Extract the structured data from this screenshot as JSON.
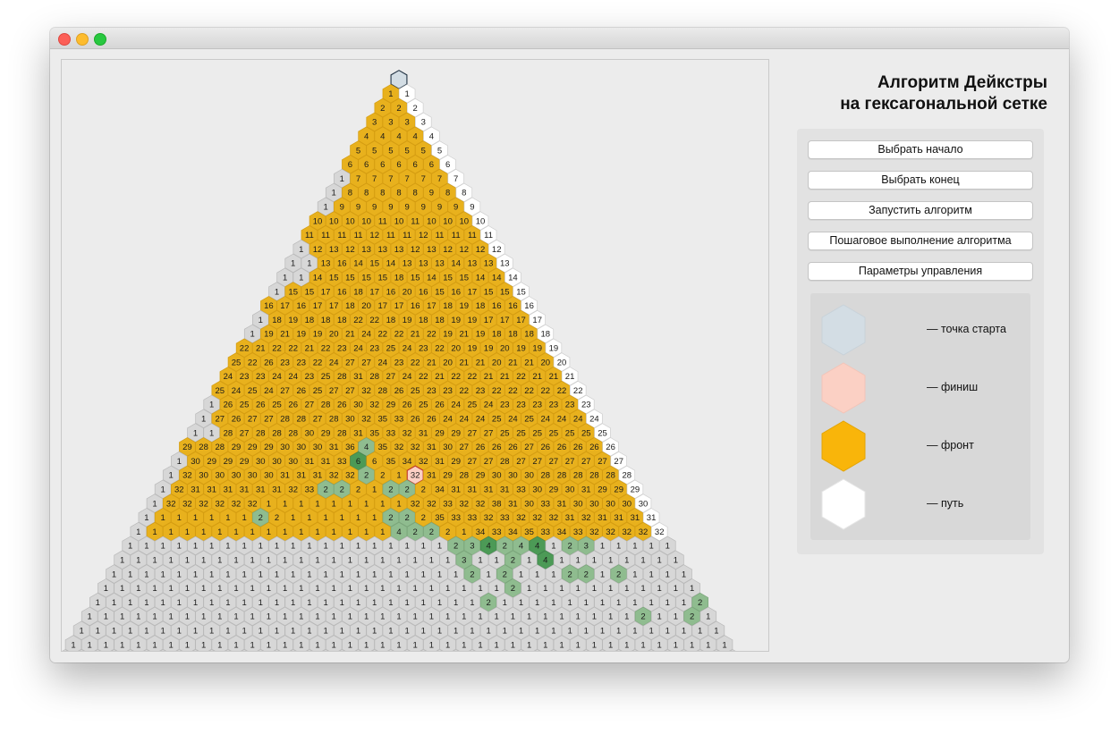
{
  "window": {
    "buttons": [
      "close",
      "minimize",
      "zoom"
    ]
  },
  "title": {
    "line1": "Алгоритм Дейкстры",
    "line2": "на гексагональной сетке"
  },
  "buttons": [
    {
      "label": "Выбрать начало"
    },
    {
      "label": "Выбрать конец"
    },
    {
      "label": "Запустить алгоритм"
    },
    {
      "label": "Пошаговое выполнение алгоритма"
    },
    {
      "label": "Параметры управления"
    }
  ],
  "legend": [
    {
      "label": "— точка старта",
      "color": "#d3dde4"
    },
    {
      "label": "— финиш",
      "color": "#fbd0c4"
    },
    {
      "label": "— фронт",
      "color": "#f9b50a"
    },
    {
      "label": "— путь",
      "color": "#ffffff"
    }
  ],
  "grid": {
    "colors": {
      "start": "#d3dde4",
      "finish": "#fbd0c4",
      "front": "#e8b11d",
      "path": "#ffffff",
      "empty": "#d7d7d7",
      "green_light": "#8fbc8f",
      "green_dark": "#4c9a56"
    },
    "rows": [
      {
        "front": [],
        "path": []
      },
      {
        "front": [
          "1"
        ],
        "path": [
          "1"
        ]
      },
      {
        "front": [
          "2",
          "2"
        ],
        "path": [
          "2"
        ]
      },
      {
        "front": [
          "3",
          "3",
          "3"
        ],
        "path": [
          "3"
        ]
      },
      {
        "front": [
          "4",
          "4",
          "4",
          "4"
        ],
        "path": [
          "4"
        ]
      },
      {
        "front": [
          "5",
          "5",
          "5",
          "5",
          "5"
        ],
        "path": [
          "5"
        ]
      },
      {
        "front": [
          "6",
          "6",
          "6",
          "6",
          "6",
          "6"
        ],
        "path": [
          "6"
        ]
      },
      {
        "front": [
          "7",
          "7",
          "7",
          "7",
          "7",
          "7"
        ],
        "path": [
          "7"
        ]
      },
      {
        "front": [
          "8",
          "8",
          "8",
          "8",
          "8",
          "9",
          "8"
        ],
        "path": [
          "8"
        ]
      },
      {
        "front": [
          "9",
          "9",
          "9",
          "9",
          "9",
          "9",
          "9",
          "9"
        ],
        "path": [
          "9"
        ]
      },
      {
        "front": [
          "10",
          "10",
          "10",
          "10",
          "11",
          "10",
          "11",
          "10",
          "10",
          "10"
        ],
        "path": [
          "10"
        ]
      },
      {
        "front": [
          "11",
          "11",
          "11",
          "11",
          "12",
          "11",
          "11",
          "12",
          "11",
          "11",
          "11"
        ],
        "path": [
          "11"
        ]
      },
      {
        "front": [
          "12",
          "13",
          "12",
          "13",
          "13",
          "13",
          "12",
          "13",
          "12",
          "12",
          "12"
        ],
        "path": [
          "12"
        ]
      },
      {
        "front": [
          "13",
          "16",
          "14",
          "15",
          "14",
          "13",
          "13",
          "13",
          "14",
          "13",
          "13"
        ],
        "path": [
          "13"
        ]
      },
      {
        "front": [
          "14",
          "15",
          "15",
          "15",
          "15",
          "18",
          "15",
          "14",
          "15",
          "15",
          "14",
          "14"
        ],
        "path": [
          "14"
        ]
      },
      {
        "front": [
          "15",
          "15",
          "17",
          "16",
          "18",
          "17",
          "16",
          "20",
          "16",
          "15",
          "16",
          "17",
          "15",
          "15"
        ],
        "path": [
          "15"
        ]
      },
      {
        "front": [
          "16",
          "17",
          "16",
          "17",
          "17",
          "18",
          "20",
          "17",
          "17",
          "16",
          "17",
          "18",
          "19",
          "18",
          "16",
          "16"
        ],
        "path": [
          "16"
        ]
      },
      {
        "front": [
          "18",
          "19",
          "18",
          "18",
          "18",
          "22",
          "22",
          "18",
          "19",
          "18",
          "18",
          "19",
          "19",
          "17",
          "17",
          "17"
        ],
        "path": [
          "17"
        ]
      },
      {
        "front": [
          "19",
          "21",
          "19",
          "19",
          "20",
          "21",
          "24",
          "22",
          "22",
          "21",
          "22",
          "19",
          "21",
          "19",
          "18",
          "18",
          "18"
        ],
        "path": [
          "18"
        ]
      },
      {
        "front": [
          "22",
          "21",
          "22",
          "22",
          "21",
          "22",
          "23",
          "24",
          "23",
          "25",
          "24",
          "23",
          "22",
          "20",
          "19",
          "19",
          "20",
          "19",
          "19"
        ],
        "path": [
          "19"
        ]
      },
      {
        "front": [
          "25",
          "22",
          "26",
          "23",
          "23",
          "22",
          "24",
          "27",
          "27",
          "24",
          "23",
          "22",
          "21",
          "20",
          "21",
          "21",
          "20",
          "21",
          "21",
          "20"
        ],
        "path": [
          "20"
        ]
      },
      {
        "front": [
          "24",
          "23",
          "23",
          "24",
          "24",
          "23",
          "25",
          "28",
          "31",
          "28",
          "27",
          "24",
          "22",
          "21",
          "22",
          "22",
          "21",
          "21",
          "22",
          "21",
          "21"
        ],
        "path": [
          "21"
        ]
      },
      {
        "front": [
          "25",
          "24",
          "25",
          "24",
          "27",
          "26",
          "25",
          "27",
          "27",
          "32",
          "28",
          "26",
          "25",
          "23",
          "23",
          "22",
          "23",
          "22",
          "22",
          "22",
          "22",
          "22"
        ],
        "path": [
          "22"
        ]
      },
      {
        "front": [
          "26",
          "25",
          "26",
          "25",
          "26",
          "27",
          "28",
          "26",
          "30",
          "32",
          "29",
          "26",
          "25",
          "26",
          "24",
          "25",
          "24",
          "23",
          "23",
          "23",
          "23",
          "23"
        ],
        "path": [
          "23"
        ]
      },
      {
        "front": [
          "27",
          "26",
          "27",
          "27",
          "28",
          "28",
          "27",
          "28",
          "30",
          "32",
          "35",
          "33",
          "26",
          "26",
          "24",
          "24",
          "24",
          "25",
          "24",
          "25",
          "24",
          "24",
          "24"
        ],
        "path": [
          "24"
        ]
      },
      {
        "front": [
          "28",
          "27",
          "28",
          "28",
          "28",
          "30",
          "29",
          "28",
          "31",
          "35",
          "33",
          "32",
          "31",
          "29",
          "29",
          "27",
          "27",
          "25",
          "25",
          "25",
          "25",
          "25",
          "25"
        ],
        "path": [
          "25"
        ]
      },
      {
        "front": [
          "29",
          "28",
          "28",
          "29",
          "29",
          "29",
          "30",
          "30",
          "30",
          "31",
          "36",
          "4",
          "35",
          "32",
          "32",
          "31",
          "30",
          "27",
          "26",
          "26",
          "26",
          "27",
          "26",
          "26",
          "26",
          "26"
        ],
        "path": [
          "26"
        ]
      },
      {
        "front": [
          "30",
          "29",
          "29",
          "29",
          "30",
          "30",
          "30",
          "31",
          "31",
          "33",
          "1",
          "6",
          "35",
          "34",
          "32",
          "31",
          "29",
          "27",
          "27",
          "28",
          "27",
          "27",
          "27",
          "27",
          "27",
          "27"
        ],
        "path": [
          "27"
        ]
      },
      {
        "front": [
          "32",
          "30",
          "30",
          "30",
          "30",
          "30",
          "31",
          "31",
          "31",
          "32",
          "32",
          "1",
          "2",
          "1",
          "32",
          "31",
          "29",
          "28",
          "29",
          "30",
          "30",
          "30",
          "28",
          "28",
          "28",
          "28",
          "28"
        ],
        "path": [
          "28"
        ]
      },
      {
        "front": [
          "32",
          "31",
          "31",
          "31",
          "31",
          "31",
          "31",
          "32",
          "33",
          "32",
          "2",
          "2",
          "1",
          "1",
          "2",
          "2",
          "34",
          "31",
          "31",
          "31",
          "31",
          "33",
          "30",
          "29",
          "30",
          "31",
          "29",
          "29"
        ],
        "path": [
          "29"
        ]
      },
      {
        "front": [
          "32",
          "32",
          "32",
          "32",
          "32",
          "32",
          "1",
          "1",
          "1",
          "1",
          "1",
          "1",
          "1",
          "1",
          "1",
          "32",
          "32",
          "33",
          "32",
          "32",
          "38",
          "31",
          "30",
          "33",
          "31",
          "30",
          "30",
          "30",
          "30"
        ],
        "path": [
          "30"
        ]
      },
      {
        "front": [
          "1",
          "1",
          "1",
          "1",
          "1",
          "1",
          "1",
          "2",
          "1",
          "1",
          "1",
          "1",
          "1",
          "1",
          "1",
          "2",
          "2",
          "35",
          "33",
          "33",
          "32",
          "33",
          "32",
          "32",
          "32",
          "31",
          "32",
          "31",
          "31",
          "31"
        ],
        "path": [
          "31"
        ]
      },
      {
        "front": [
          "1",
          "1",
          "1",
          "1",
          "1",
          "1",
          "1",
          "1",
          "1",
          "1",
          "1",
          "1",
          "1",
          "1",
          "1",
          "1",
          "4",
          "2",
          "2",
          "1",
          "34",
          "33",
          "34",
          "35",
          "33",
          "34",
          "33",
          "32",
          "32",
          "32",
          "32"
        ],
        "path": [
          "32"
        ]
      }
    ],
    "full_rows_count": 9,
    "full_row_value": "1",
    "marked_cells": [
      {
        "row": 26,
        "col": 11,
        "value": "4",
        "kind": "green_light"
      },
      {
        "row": 27,
        "col": 11,
        "value": "6",
        "kind": "green_dark"
      },
      {
        "row": 28,
        "col": 12,
        "value": "2",
        "kind": "green_light"
      },
      {
        "row": 28,
        "col": 15,
        "value": "32",
        "kind": "finish"
      },
      {
        "row": 29,
        "col": 10,
        "value": "2",
        "kind": "green_light"
      },
      {
        "row": 29,
        "col": 11,
        "value": "2",
        "kind": "green_light"
      },
      {
        "row": 29,
        "col": 14,
        "value": "2",
        "kind": "green_light"
      },
      {
        "row": 29,
        "col": 15,
        "value": "2",
        "kind": "green_light"
      },
      {
        "row": 31,
        "col": 7,
        "value": "2",
        "kind": "green_light"
      },
      {
        "row": 31,
        "col": 15,
        "value": "2",
        "kind": "green_light"
      },
      {
        "row": 31,
        "col": 16,
        "value": "2",
        "kind": "green_light"
      },
      {
        "row": 32,
        "col": 16,
        "value": "4",
        "kind": "green_light"
      },
      {
        "row": 32,
        "col": 17,
        "value": "2",
        "kind": "green_light"
      },
      {
        "row": 32,
        "col": 18,
        "value": "2",
        "kind": "green_light"
      },
      {
        "row": 33,
        "col": 20,
        "value": "2",
        "kind": "green_light"
      },
      {
        "row": 33,
        "col": 21,
        "value": "3",
        "kind": "green_light"
      },
      {
        "row": 33,
        "col": 22,
        "value": "4",
        "kind": "green_dark"
      },
      {
        "row": 33,
        "col": 23,
        "value": "2",
        "kind": "green_light"
      },
      {
        "row": 33,
        "col": 24,
        "value": "4",
        "kind": "green_light"
      },
      {
        "row": 33,
        "col": 25,
        "value": "4",
        "kind": "green_dark"
      },
      {
        "row": 33,
        "col": 27,
        "value": "2",
        "kind": "green_light"
      },
      {
        "row": 33,
        "col": 28,
        "value": "3",
        "kind": "green_light"
      },
      {
        "row": 34,
        "col": 21,
        "value": "3",
        "kind": "green_light"
      },
      {
        "row": 34,
        "col": 24,
        "value": "2",
        "kind": "green_light"
      },
      {
        "row": 34,
        "col": 26,
        "value": "4",
        "kind": "green_dark"
      },
      {
        "row": 35,
        "col": 22,
        "value": "2",
        "kind": "green_light"
      },
      {
        "row": 35,
        "col": 24,
        "value": "2",
        "kind": "green_light"
      },
      {
        "row": 35,
        "col": 28,
        "value": "2",
        "kind": "green_light"
      },
      {
        "row": 35,
        "col": 29,
        "value": "2",
        "kind": "green_light"
      },
      {
        "row": 35,
        "col": 31,
        "value": "2",
        "kind": "green_light"
      },
      {
        "row": 36,
        "col": 25,
        "value": "2",
        "kind": "green_light"
      },
      {
        "row": 37,
        "col": 24,
        "value": "2",
        "kind": "green_light"
      },
      {
        "row": 37,
        "col": 37,
        "value": "2",
        "kind": "green_light"
      },
      {
        "row": 38,
        "col": 34,
        "value": "2",
        "kind": "green_light"
      },
      {
        "row": 38,
        "col": 37,
        "value": "2",
        "kind": "green_light"
      }
    ]
  }
}
